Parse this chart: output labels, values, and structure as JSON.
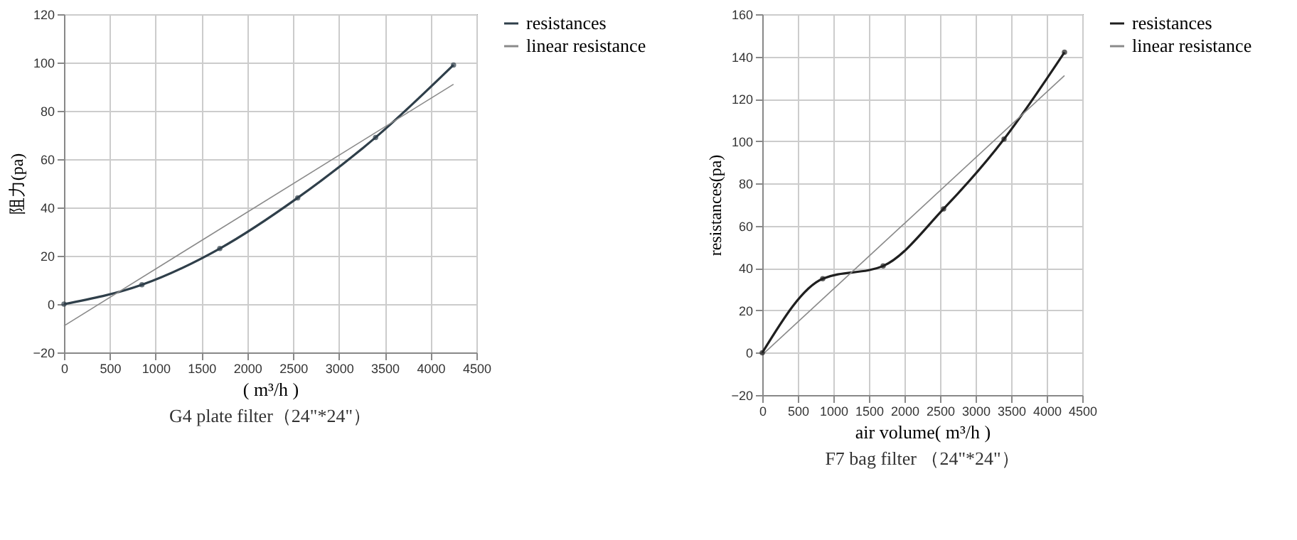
{
  "chart_data": [
    {
      "type": "line",
      "title": "G4 plate filter（24\"*24\"）",
      "xlabel": "( m³/h )",
      "ylabel": "阻力(pa)",
      "xlim": [
        0,
        4500
      ],
      "xticks": [
        0,
        500,
        1000,
        1500,
        2000,
        2500,
        3000,
        3500,
        4000,
        4500
      ],
      "ylim": [
        -20,
        120
      ],
      "yticks": [
        -20,
        0,
        20,
        40,
        60,
        80,
        100,
        120
      ],
      "grid": true,
      "legend": "right",
      "line_style": "solid",
      "series": [
        {
          "name": "resistances",
          "color": "#2f3f4a",
          "marker": "circle",
          "x": [
            0,
            850,
            1700,
            2550,
            3400,
            4250
          ],
          "values": [
            0,
            8,
            23,
            44,
            69,
            99
          ]
        },
        {
          "name": "linear resistance",
          "color": "#8a8a8a",
          "marker": "none",
          "x": [
            0,
            4250
          ],
          "values": [
            -9,
            91
          ]
        }
      ]
    },
    {
      "type": "line",
      "title": "F7 bag filter （24\"*24\"）",
      "xlabel": "air volume( m³/h )",
      "ylabel": "resistances(pa)",
      "xlim": [
        0,
        4500
      ],
      "xticks": [
        0,
        500,
        1000,
        1500,
        2000,
        2500,
        3000,
        3500,
        4000,
        4500
      ],
      "ylim": [
        -20,
        160
      ],
      "yticks": [
        -20,
        0,
        20,
        40,
        60,
        80,
        100,
        120,
        140,
        160
      ],
      "grid": true,
      "legend": "right",
      "line_style": "solid",
      "series": [
        {
          "name": "resistances",
          "color": "#1f1f1f",
          "marker": "circle",
          "x": [
            0,
            850,
            1700,
            2550,
            3400,
            4250
          ],
          "values": [
            0,
            35,
            41,
            68,
            101,
            142
          ]
        },
        {
          "name": "linear resistance",
          "color": "#8a8a8a",
          "marker": "none",
          "x": [
            0,
            4250
          ],
          "values": [
            -1,
            131
          ]
        }
      ]
    }
  ]
}
